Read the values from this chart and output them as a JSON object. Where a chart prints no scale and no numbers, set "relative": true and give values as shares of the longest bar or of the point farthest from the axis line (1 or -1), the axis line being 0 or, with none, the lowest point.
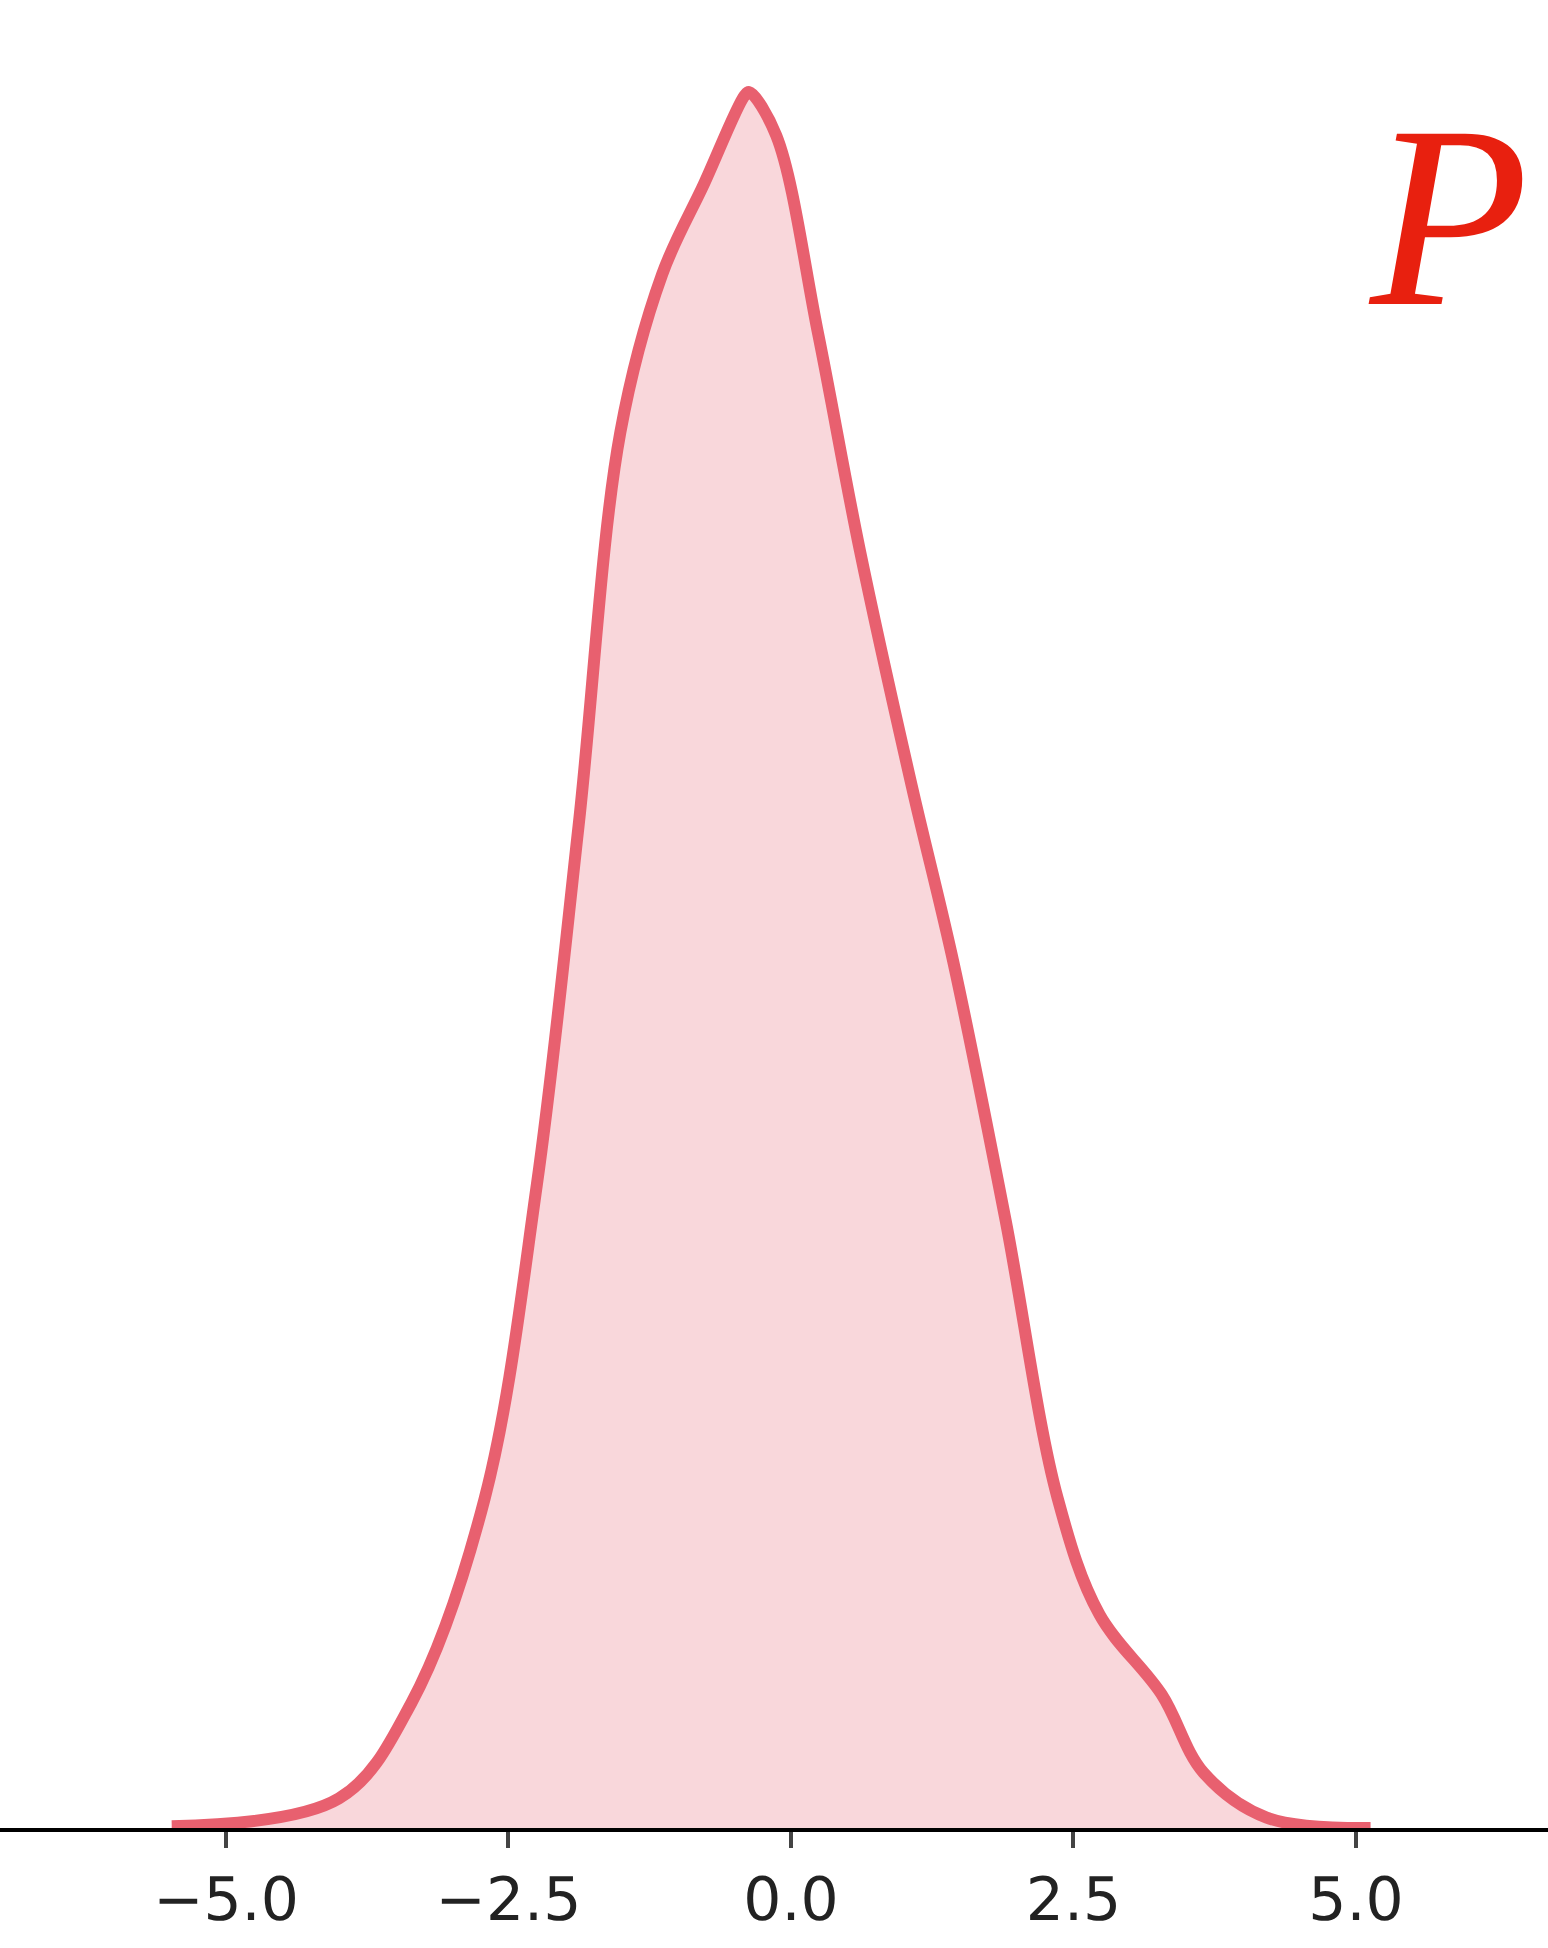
{
  "chart_data": {
    "type": "area",
    "relative": true,
    "x": [
      -5.48,
      -4.0,
      -3.36,
      -2.71,
      -2.25,
      -1.88,
      -1.51,
      -1.14,
      -0.77,
      -0.41,
      -0.37,
      -0.13,
      0.24,
      0.61,
      1.07,
      1.44,
      1.9,
      2.36,
      2.73,
      3.28,
      3.65,
      4.21,
      5.13
    ],
    "series": [
      {
        "color": "#e8606f",
        "values": [
          0.001,
          0.017,
          0.072,
          0.19,
          0.37,
          0.577,
          0.804,
          0.895,
          0.947,
          0.998,
          1.0,
          0.975,
          0.861,
          0.736,
          0.6,
          0.498,
          0.35,
          0.19,
          0.123,
          0.077,
          0.032,
          0.006,
          0.0
        ]
      }
    ],
    "xlim": [
      -7.0,
      6.7
    ],
    "xticks": [
      {
        "value": -5,
        "label": "−5.0"
      },
      {
        "value": -2.5,
        "label": "−2.5"
      },
      {
        "value": 0,
        "label": "0.0"
      },
      {
        "value": 2.5,
        "label": "2.5"
      },
      {
        "value": 5,
        "label": "5.0"
      }
    ],
    "annotations": [
      "P"
    ]
  }
}
